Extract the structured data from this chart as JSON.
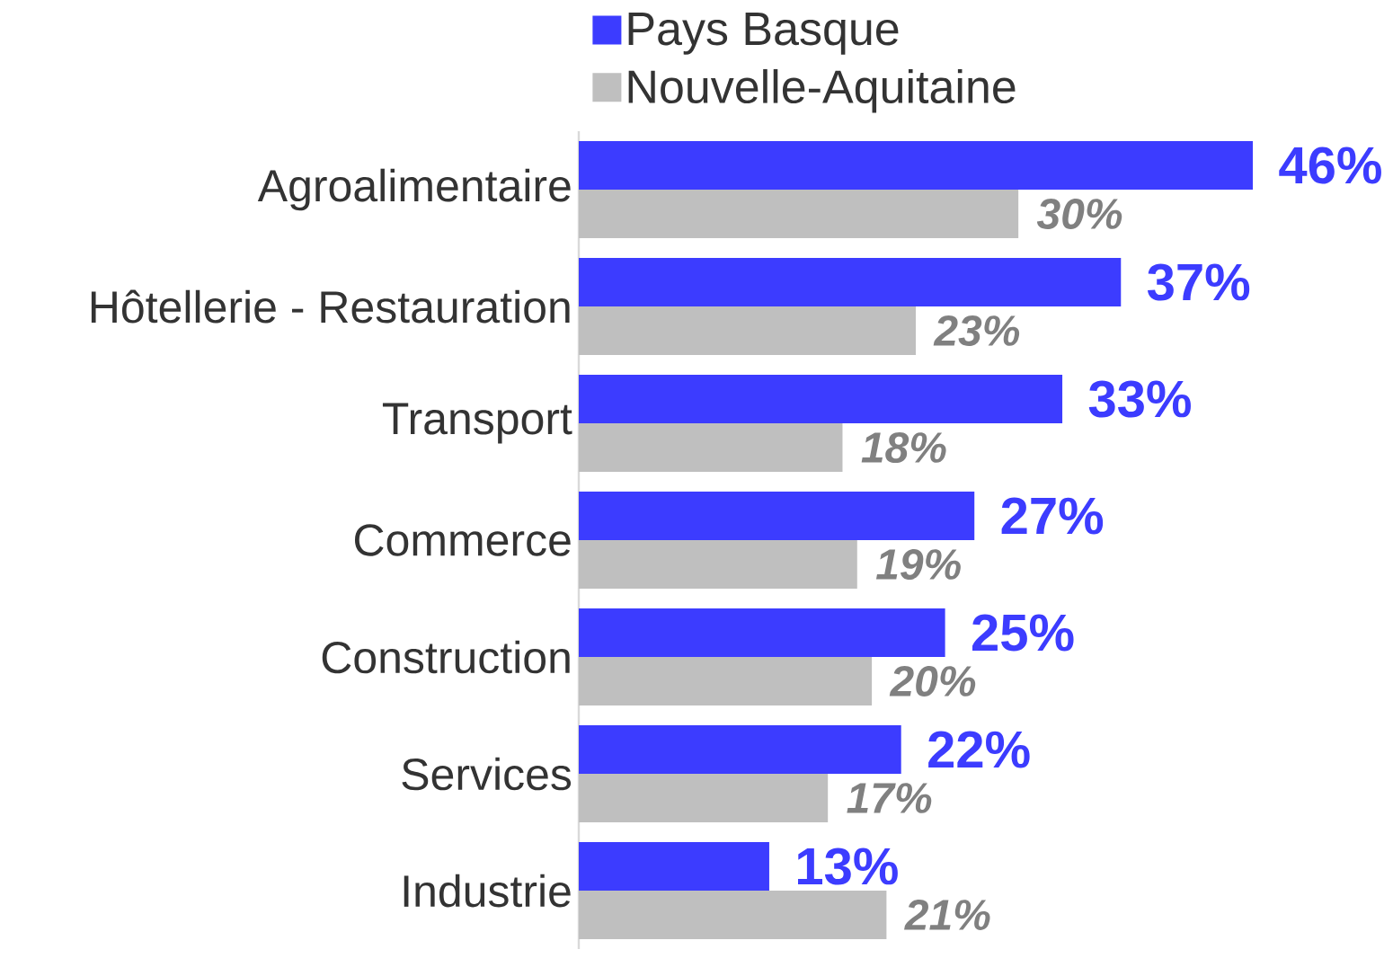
{
  "chart_data": {
    "type": "bar",
    "orientation": "horizontal",
    "categories": [
      "Agroalimentaire",
      "Hôtellerie - Restauration",
      "Transport",
      "Commerce",
      "Construction",
      "Services",
      "Industrie"
    ],
    "series": [
      {
        "name": "Pays Basque",
        "color": "#3c3cff",
        "values": [
          46,
          37,
          33,
          27,
          25,
          22,
          13
        ],
        "value_labels": [
          "46%",
          "37%",
          "33%",
          "27%",
          "25%",
          "22%",
          "13%"
        ]
      },
      {
        "name": "Nouvelle-Aquitaine",
        "color": "#bfbfbf",
        "values": [
          30,
          23,
          18,
          19,
          20,
          17,
          21
        ],
        "value_labels": [
          "30%",
          "23%",
          "18%",
          "19%",
          "20%",
          "17%",
          "21%"
        ]
      }
    ],
    "legend": "top",
    "tick_labels": "y"
  }
}
